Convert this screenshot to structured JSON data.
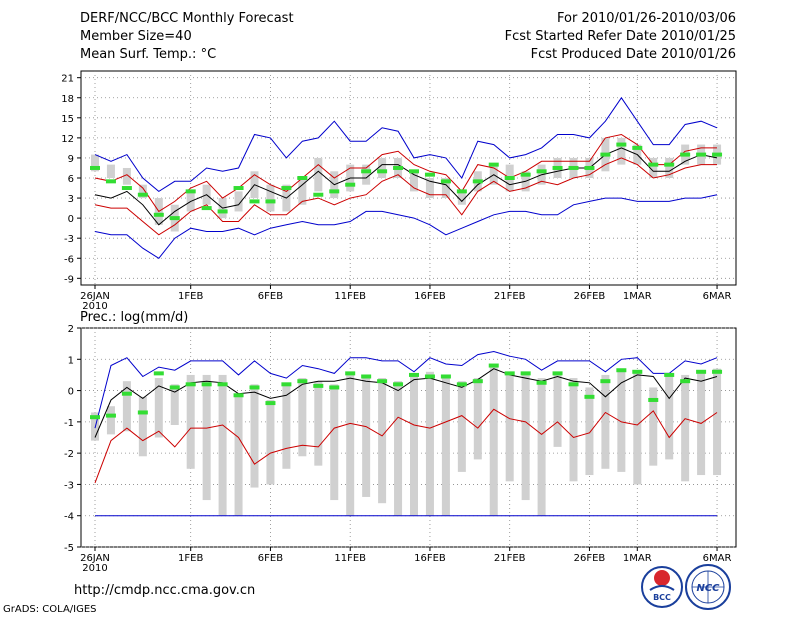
{
  "header": {
    "title": "DERF/NCC/BCC Monthly Forecast",
    "member_size": "Member Size=40",
    "var1_label": "Mean Surf. Temp.: °C",
    "forecast_range": "For 2010/01/26-2010/03/06",
    "started_date": "Fcst Started Refer Date 2010/01/25",
    "produced_date": "Fcst Produced Date 2010/01/26"
  },
  "footer": {
    "url": "http://cmdp.ncc.cma.gov.cn",
    "credit": "GrADS: COLA/IGES",
    "logo_left_text": "BCC",
    "logo_right_text": "NCC"
  },
  "colors": {
    "envelope": "#0000cc",
    "spread": "#cc0000",
    "mean": "#000000",
    "boxes": "#d0d0d0",
    "highlight": "#33dd33"
  },
  "chart_data": [
    {
      "type": "line",
      "title": "Mean Surf. Temp.: °C",
      "x_tick_labels": [
        "26JAN",
        "1FEB",
        "6FEB",
        "11FEB",
        "16FEB",
        "21FEB",
        "26FEB",
        "1MAR",
        "6MAR"
      ],
      "x_tick_days": [
        0,
        6,
        11,
        16,
        21,
        26,
        31,
        34,
        39
      ],
      "x_sub_label": "2010",
      "ylim": [
        -10,
        22
      ],
      "y_ticks": [
        -9,
        -6,
        -3,
        0,
        3,
        6,
        9,
        12,
        15,
        18,
        21
      ],
      "series": [
        {
          "name": "max",
          "color": "#0000cc",
          "values": [
            9.5,
            8.5,
            9.5,
            6,
            4,
            5.5,
            5.5,
            7.5,
            7,
            7.5,
            12.5,
            12,
            9,
            11.5,
            12,
            14.5,
            11.5,
            11.5,
            13.5,
            13,
            9,
            9.5,
            9,
            6,
            11.5,
            11,
            9,
            9.5,
            10.5,
            12.5,
            12.5,
            12,
            14.5,
            18,
            14.5,
            11,
            11,
            14,
            14.5,
            13.5
          ]
        },
        {
          "name": "upper",
          "color": "#cc0000",
          "values": [
            6,
            5.5,
            6.5,
            4.5,
            1,
            2.5,
            4.5,
            5.5,
            3,
            4.5,
            6.5,
            5,
            4,
            6,
            8,
            6,
            7.5,
            7.5,
            9.5,
            10,
            8,
            7,
            6.5,
            4,
            8,
            7.5,
            6,
            7,
            8.5,
            8.5,
            8.5,
            8.5,
            12,
            12.5,
            11,
            8,
            8,
            10,
            10.5,
            10.5
          ]
        },
        {
          "name": "mean",
          "color": "#000000",
          "values": [
            3.5,
            3,
            4,
            2,
            -1,
            1,
            2.5,
            3.5,
            1.5,
            2,
            5,
            4,
            3,
            5,
            7,
            5,
            6,
            6,
            8,
            8,
            6.5,
            5.5,
            5,
            2.5,
            5,
            6.5,
            5,
            5.5,
            6.5,
            7,
            7.5,
            7.5,
            9.5,
            10.5,
            9.5,
            7,
            7,
            8.5,
            9.5,
            9
          ]
        },
        {
          "name": "lower",
          "color": "#cc0000",
          "values": [
            2,
            1.5,
            1.5,
            -0.5,
            -2.5,
            -1,
            1,
            2,
            -0.5,
            -0.5,
            2,
            0.5,
            0.5,
            2.5,
            3,
            2,
            3,
            3.5,
            5.5,
            6.5,
            4.5,
            3.5,
            3.5,
            0.5,
            4,
            5.5,
            4,
            4.5,
            5.5,
            5,
            6,
            6.5,
            8,
            9,
            8,
            6,
            6.5,
            7.5,
            8,
            8
          ]
        },
        {
          "name": "min",
          "color": "#0000cc",
          "values": [
            -2,
            -2.5,
            -2.5,
            -4.5,
            -6,
            -3,
            -1.5,
            -2,
            -2,
            -1.5,
            -2.5,
            -1.5,
            -1,
            -0.5,
            -1,
            -1,
            -0.5,
            1,
            1,
            0.5,
            0,
            -1,
            -2.5,
            -1.5,
            -0.5,
            0.5,
            1,
            1,
            0.5,
            0.5,
            2,
            2.5,
            3,
            3,
            2.5,
            2.5,
            2.5,
            3,
            3,
            3.5
          ]
        },
        {
          "name": "highlight",
          "color": "#33dd33",
          "values": [
            7.5,
            5.5,
            4.5,
            3.5,
            0.5,
            0,
            4,
            1.5,
            1,
            4.5,
            2.5,
            2.5,
            4.5,
            6,
            3.5,
            4,
            5,
            7,
            7,
            7.5,
            7,
            6.5,
            5.5,
            4,
            5.5,
            8,
            6,
            6.5,
            7,
            7.5,
            7.5,
            7.5,
            9.5,
            11,
            10.5,
            8,
            8,
            9.5,
            9.5,
            9.5
          ]
        }
      ],
      "box_ranges": [
        [
          7,
          9.5
        ],
        [
          6,
          8
        ],
        [
          5,
          7.5
        ],
        [
          3,
          5
        ],
        [
          -1,
          3
        ],
        [
          -2,
          2
        ],
        [
          1,
          4
        ],
        [
          2,
          5
        ],
        [
          0,
          3
        ],
        [
          1,
          4
        ],
        [
          3,
          7
        ],
        [
          1,
          5
        ],
        [
          1,
          5
        ],
        [
          2,
          6
        ],
        [
          4,
          9
        ],
        [
          3,
          7
        ],
        [
          4,
          8
        ],
        [
          5,
          8
        ],
        [
          6,
          9
        ],
        [
          6,
          9
        ],
        [
          4,
          7
        ],
        [
          3,
          6
        ],
        [
          3,
          6
        ],
        [
          2,
          4
        ],
        [
          4,
          7
        ],
        [
          5,
          8
        ],
        [
          4,
          8
        ],
        [
          4,
          7
        ],
        [
          5,
          8
        ],
        [
          6,
          9
        ],
        [
          6,
          9
        ],
        [
          6,
          9
        ],
        [
          7,
          12
        ],
        [
          8,
          12
        ],
        [
          8,
          11
        ],
        [
          6,
          9
        ],
        [
          6,
          9
        ],
        [
          8,
          11
        ],
        [
          8,
          11
        ],
        [
          8,
          11
        ]
      ]
    },
    {
      "type": "line",
      "title": "Prec.: log(mm/d)",
      "x_tick_labels": [
        "26JAN",
        "1FEB",
        "6FEB",
        "11FEB",
        "16FEB",
        "21FEB",
        "26FEB",
        "1MAR",
        "6MAR"
      ],
      "x_tick_days": [
        0,
        6,
        11,
        16,
        21,
        26,
        31,
        34,
        39
      ],
      "x_sub_label": "2010",
      "ylim": [
        -5,
        2
      ],
      "y_ticks": [
        -5,
        -4,
        -3,
        -2,
        -1,
        0,
        1,
        2
      ],
      "series": [
        {
          "name": "max",
          "color": "#0000cc",
          "values": [
            -1.2,
            0.8,
            1.05,
            0.45,
            0.75,
            0.65,
            0.95,
            0.95,
            0.95,
            0.5,
            0.95,
            0.55,
            0.4,
            0.8,
            0.7,
            0.55,
            1.05,
            1.05,
            0.95,
            0.95,
            0.6,
            1.05,
            0.85,
            0.8,
            1.15,
            1.25,
            1.1,
            1.0,
            0.65,
            0.95,
            0.95,
            0.95,
            0.6,
            1.0,
            1.05,
            0.55,
            0.55,
            0.95,
            0.85,
            1.05
          ]
        },
        {
          "name": "mean",
          "color": "#000000",
          "values": [
            -1.5,
            -0.3,
            0.1,
            -0.25,
            0.15,
            -0.05,
            0.25,
            0.3,
            0.25,
            -0.1,
            -0.05,
            -0.25,
            -0.15,
            0.2,
            0.3,
            0.3,
            0.4,
            0.3,
            0.25,
            0.0,
            0.35,
            0.4,
            0.25,
            0.1,
            0.35,
            0.7,
            0.5,
            0.4,
            0.3,
            0.45,
            0.3,
            0.25,
            -0.2,
            0.25,
            0.5,
            0.45,
            -0.25,
            0.4,
            0.3,
            0.45
          ]
        },
        {
          "name": "lower",
          "color": "#cc0000",
          "values": [
            -2.95,
            -1.6,
            -1.2,
            -1.6,
            -1.3,
            -1.8,
            -1.2,
            -1.2,
            -1.1,
            -1.5,
            -2.35,
            -2.0,
            -1.85,
            -1.75,
            -1.8,
            -1.2,
            -1.05,
            -1.15,
            -1.45,
            -0.85,
            -1.1,
            -1.2,
            -1.0,
            -0.8,
            -1.2,
            -0.6,
            -0.9,
            -1.0,
            -1.4,
            -1.0,
            -1.5,
            -1.35,
            -0.7,
            -1.0,
            -1.1,
            -0.65,
            -1.5,
            -0.9,
            -1.05,
            -0.7
          ]
        },
        {
          "name": "min",
          "color": "#0000cc",
          "values": [
            -4,
            -4,
            -4,
            -4,
            -4,
            -4,
            -4,
            -4,
            -4,
            -4,
            -4,
            -4,
            -4,
            -4,
            -4,
            -4,
            -4,
            -4,
            -4,
            -4,
            -4,
            -4,
            -4,
            -4,
            -4,
            -4,
            -4,
            -4,
            -4,
            -4,
            -4,
            -4,
            -4,
            -4,
            -4,
            -4,
            -4,
            -4,
            -4,
            -4
          ]
        },
        {
          "name": "highlight",
          "color": "#33dd33",
          "values": [
            -0.85,
            -0.8,
            -0.1,
            -0.7,
            0.55,
            0.1,
            0.2,
            0.2,
            0.2,
            -0.15,
            0.1,
            -0.4,
            0.2,
            0.3,
            0.15,
            0.1,
            0.55,
            0.45,
            0.3,
            0.2,
            0.5,
            0.45,
            0.45,
            0.2,
            0.3,
            0.8,
            0.55,
            0.55,
            0.25,
            0.55,
            0.2,
            -0.2,
            0.3,
            0.65,
            0.6,
            -0.3,
            0.5,
            0.3,
            0.6,
            0.6
          ]
        }
      ],
      "box_ranges": [
        [
          -1.6,
          -0.7
        ],
        [
          -1.4,
          -0.5
        ],
        [
          -1.3,
          0.3
        ],
        [
          -2.1,
          -0.2
        ],
        [
          -1.5,
          0.4
        ],
        [
          -1.1,
          0.2
        ],
        [
          -2.5,
          0.5
        ],
        [
          -3.5,
          0.5
        ],
        [
          -4,
          0.5
        ],
        [
          -4,
          -0.1
        ],
        [
          -3.1,
          0.2
        ],
        [
          -3,
          -0.3
        ],
        [
          -2.5,
          0.2
        ],
        [
          -2.1,
          0.4
        ],
        [
          -2.4,
          0.3
        ],
        [
          -3.5,
          0.2
        ],
        [
          -4,
          0.6
        ],
        [
          -3.4,
          0.5
        ],
        [
          -3.6,
          0.4
        ],
        [
          -4,
          0.3
        ],
        [
          -4,
          0.5
        ],
        [
          -4,
          0.6
        ],
        [
          -4,
          0.5
        ],
        [
          -2.6,
          0.3
        ],
        [
          -2.2,
          0.4
        ],
        [
          -4,
          0.8
        ],
        [
          -2.9,
          0.6
        ],
        [
          -3.5,
          0.6
        ],
        [
          -4,
          0.4
        ],
        [
          -1.8,
          0.6
        ],
        [
          -2.9,
          0.4
        ],
        [
          -2.7,
          0.1
        ],
        [
          -2.5,
          0.5
        ],
        [
          -2.6,
          0.7
        ],
        [
          -3,
          0.6
        ],
        [
          -2.4,
          0.1
        ],
        [
          -2.2,
          0.5
        ],
        [
          -2.9,
          0.5
        ],
        [
          -2.7,
          0.6
        ],
        [
          -2.7,
          0.7
        ]
      ]
    }
  ]
}
